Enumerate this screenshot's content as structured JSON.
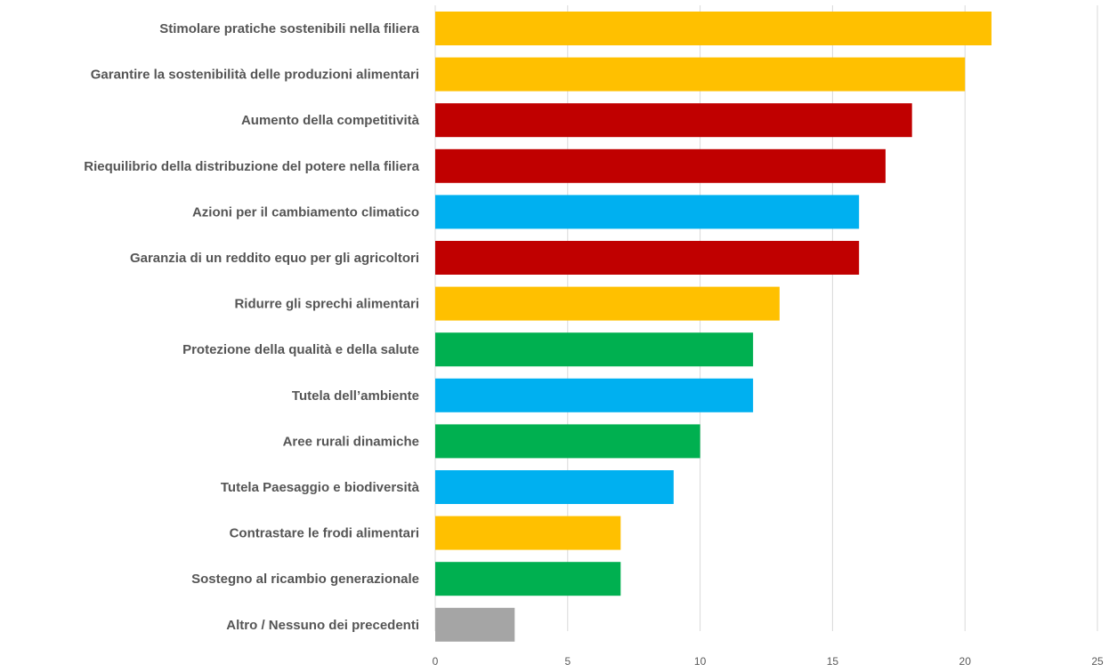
{
  "chart_data": {
    "type": "bar",
    "orientation": "horizontal",
    "title": "",
    "xlabel": "",
    "ylabel": "",
    "xlim": [
      0,
      25
    ],
    "x_ticks": [
      0,
      5,
      10,
      15,
      20,
      25
    ],
    "grid": "vertical",
    "legend": "none",
    "categories": [
      "Stimolare pratiche sostenibili nella filiera",
      "Garantire la sostenibilità delle produzioni alimentari",
      "Aumento della competitività",
      "Riequilibrio della distribuzione del potere nella filiera",
      "Azioni per il cambiamento climatico",
      "Garanzia di un reddito equo per gli agricoltori",
      "Ridurre gli sprechi alimentari",
      "Protezione della qualità e della salute",
      "Tutela dell’ambiente",
      "Aree rurali dinamiche",
      "Tutela Paesaggio e biodiversità",
      "Contrastare le frodi alimentari",
      "Sostegno al ricambio generazionale",
      "Altro / Nessuno dei precedenti"
    ],
    "values": [
      21,
      20,
      18,
      17,
      16,
      16,
      13,
      12,
      12,
      10,
      9,
      7,
      7,
      3
    ],
    "colors": [
      "#FFC000",
      "#FFC000",
      "#C00000",
      "#C00000",
      "#00B0F0",
      "#C00000",
      "#FFC000",
      "#00B050",
      "#00B0F0",
      "#00B050",
      "#00B0F0",
      "#FFC000",
      "#00B050",
      "#A5A5A5"
    ]
  }
}
